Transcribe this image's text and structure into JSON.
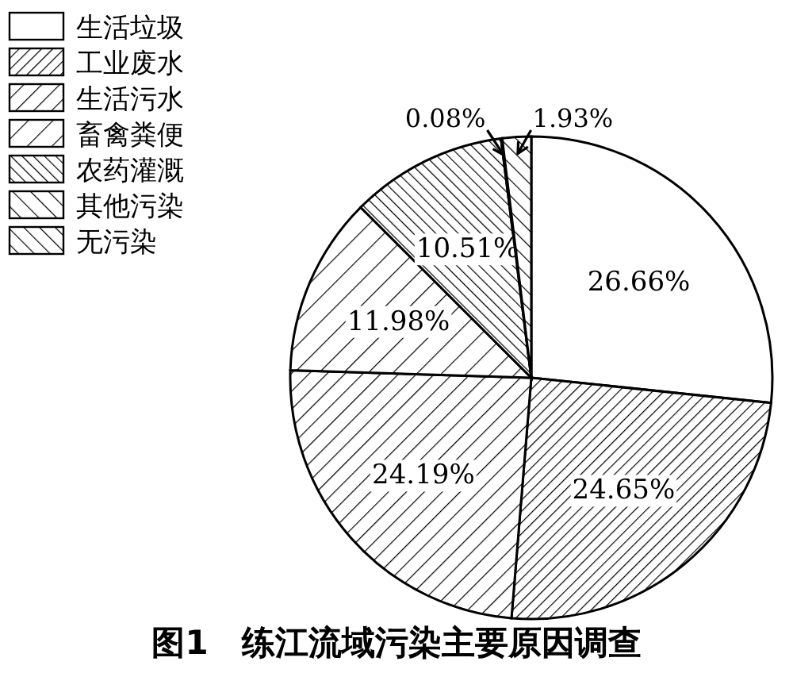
{
  "chart_data": {
    "type": "pie",
    "title": "图1　练江流域污染主要原因调查",
    "categories": [
      "生活垃圾",
      "工业废水",
      "生活污水",
      "畜禽粪便",
      "农药灌溉",
      "其他污染",
      "无污染"
    ],
    "values": [
      26.66,
      24.65,
      24.19,
      11.98,
      10.51,
      0.08,
      1.93
    ],
    "value_labels": [
      "26.66%",
      "24.65%",
      "24.19%",
      "11.98%",
      "10.51%",
      "0.08%",
      "1.93%"
    ],
    "colors": [
      "#ffffff",
      "#000000",
      "#000000",
      "#000000",
      "#000000",
      "#000000",
      "#000000"
    ],
    "legend": "top left"
  }
}
